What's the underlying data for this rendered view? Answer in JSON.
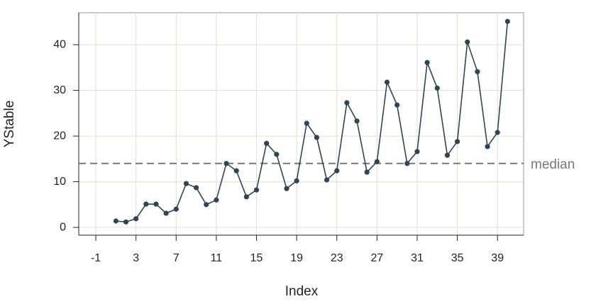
{
  "chart_data": {
    "type": "line",
    "x": [
      1,
      2,
      3,
      4,
      5,
      6,
      7,
      8,
      9,
      10,
      11,
      12,
      13,
      14,
      15,
      16,
      17,
      18,
      19,
      20,
      21,
      22,
      23,
      24,
      25,
      26,
      27,
      28,
      29,
      30,
      31,
      32,
      33,
      34,
      35,
      36,
      37,
      38,
      39,
      40
    ],
    "series": [
      {
        "name": "YStable",
        "color": "#2f4553",
        "values": [
          1.4,
          1.2,
          1.9,
          5.1,
          5.1,
          3.1,
          4.0,
          9.6,
          8.7,
          5.0,
          6.0,
          14.0,
          12.4,
          6.7,
          8.2,
          18.4,
          16.0,
          8.5,
          10.2,
          22.8,
          19.7,
          10.4,
          12.4,
          27.3,
          23.3,
          12.1,
          14.4,
          31.8,
          26.8,
          14.0,
          16.6,
          36.1,
          30.5,
          15.8,
          18.8,
          40.6,
          34.1,
          17.7,
          20.8,
          45.1
        ]
      }
    ],
    "xlabel": "Index",
    "ylabel": "YStable",
    "xlim": [
      -2.7,
      41.6
    ],
    "ylim": [
      -1.7,
      47
    ],
    "xticks": [
      -1,
      3,
      7,
      11,
      15,
      19,
      23,
      27,
      31,
      35,
      39
    ],
    "yticks": [
      0,
      10,
      20,
      30,
      40
    ],
    "grid": true,
    "hline": {
      "value": 14.0,
      "label": "median",
      "color": "#777777"
    }
  }
}
